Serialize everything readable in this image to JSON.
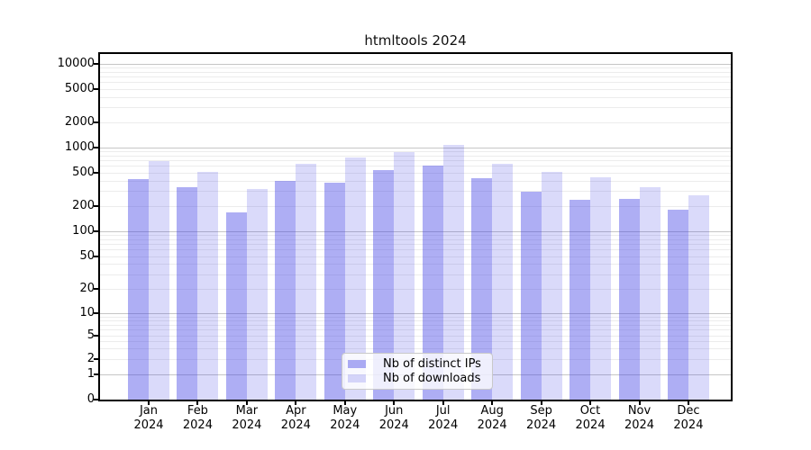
{
  "colors": {
    "ips_fill": "rgba(61,61,229,0.42)",
    "downloads_fill": "rgba(61,61,229,0.19)",
    "ips_hex": "#aaaaf2",
    "downloads_hex": "#d9d9f9",
    "grid_major": "#c6c6c6",
    "grid_minor": "#ececec",
    "axis": "#000000"
  },
  "legend": {
    "items": [
      {
        "key": "ips",
        "label": "Nb of distinct IPs"
      },
      {
        "key": "downloads",
        "label": "Nb of downloads"
      }
    ]
  },
  "chart_data": {
    "type": "bar",
    "title": "htmltools 2024",
    "categories": [
      "Jan 2024",
      "Feb 2024",
      "Mar 2024",
      "Apr 2024",
      "May 2024",
      "Jun 2024",
      "Jul 2024",
      "Aug 2024",
      "Sep 2024",
      "Oct 2024",
      "Nov 2024",
      "Dec 2024"
    ],
    "series": [
      {
        "name": "Nb of distinct IPs",
        "values": [
          415,
          333,
          166,
          395,
          380,
          530,
          600,
          425,
          293,
          235,
          240,
          180
        ]
      },
      {
        "name": "Nb of downloads",
        "values": [
          680,
          505,
          315,
          635,
          750,
          870,
          1060,
          635,
          505,
          437,
          333,
          265
        ]
      }
    ],
    "xlabel": "",
    "ylabel": "",
    "yscale": "symlog",
    "yticks": [
      0,
      1,
      2,
      5,
      10,
      20,
      50,
      100,
      200,
      500,
      1000,
      2000,
      5000,
      10000
    ],
    "ylim": [
      0,
      12900
    ],
    "grid": true,
    "legend_position": "lower center"
  }
}
